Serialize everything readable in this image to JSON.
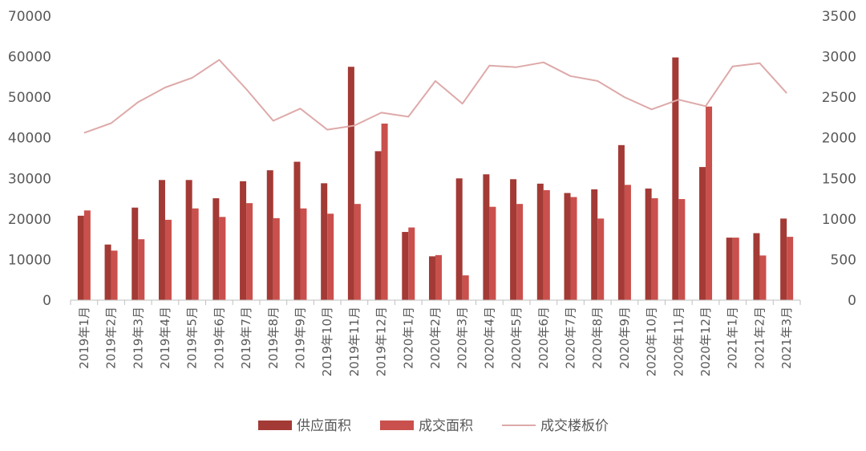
{
  "chart_data": {
    "type": "bar",
    "categories": [
      "2019年1月",
      "2019年2月",
      "2019年3月",
      "2019年4月",
      "2019年5月",
      "2019年6月",
      "2019年7月",
      "2019年8月",
      "2019年9月",
      "2019年10月",
      "2019年11月",
      "2019年12月",
      "2020年1月",
      "2020年2月",
      "2020年3月",
      "2020年4月",
      "2020年5月",
      "2020年6月",
      "2020年7月",
      "2020年8月",
      "2020年9月",
      "2020年10月",
      "2020年11月",
      "2020年12月",
      "2021年1月",
      "2021年2月",
      "2021年3月"
    ],
    "series": [
      {
        "name": "供应面积",
        "kind": "bar",
        "axis": "left",
        "color": "#a33a35",
        "values": [
          20800,
          13700,
          22800,
          29600,
          29600,
          25100,
          29300,
          32000,
          34100,
          28800,
          57500,
          36700,
          16800,
          10800,
          30000,
          31000,
          29800,
          28700,
          26400,
          27300,
          38200,
          27500,
          59800,
          32800,
          15400,
          16500,
          20100
        ]
      },
      {
        "name": "成交面积",
        "kind": "bar",
        "axis": "left",
        "color": "#c9504c",
        "values": [
          22100,
          12200,
          15000,
          19800,
          22600,
          20500,
          23900,
          20200,
          22600,
          21300,
          23700,
          43500,
          17900,
          11100,
          6100,
          23000,
          23700,
          27100,
          25400,
          20100,
          28400,
          25100,
          24900,
          47700,
          15400,
          11000,
          15600
        ]
      },
      {
        "name": "成交楼板价",
        "kind": "line",
        "axis": "right",
        "color": "#dea9a9",
        "values": [
          2060,
          2180,
          2440,
          2620,
          2740,
          2960,
          2600,
          2210,
          2360,
          2100,
          2150,
          2310,
          2260,
          2700,
          2420,
          2890,
          2870,
          2930,
          2760,
          2700,
          2500,
          2350,
          2470,
          2390,
          2880,
          2920,
          2550
        ]
      }
    ],
    "y_left": {
      "min": 0,
      "max": 70000,
      "ticks": [
        "0",
        "10000",
        "20000",
        "30000",
        "40000",
        "50000",
        "60000",
        "70000"
      ]
    },
    "y_right": {
      "min": 0,
      "max": 3500,
      "ticks": [
        "0",
        "500",
        "1000",
        "1500",
        "2000",
        "2500",
        "3000",
        "3500"
      ]
    },
    "grid": false,
    "legend_position": "bottom"
  }
}
